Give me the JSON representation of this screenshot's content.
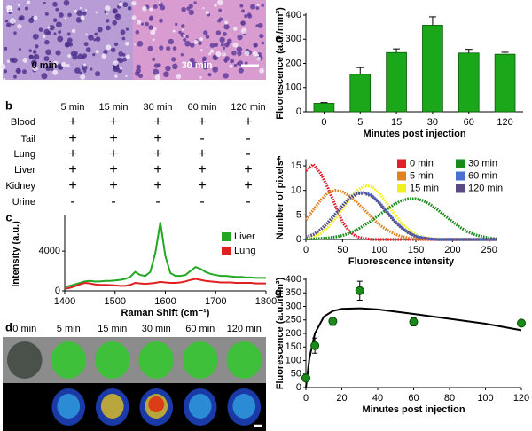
{
  "histology": {
    "label": "a",
    "captions": [
      "0 min",
      "30 min"
    ]
  },
  "table": {
    "label": "b",
    "columns": [
      "5 min",
      "15 min",
      "30 min",
      "60 min",
      "120 min"
    ],
    "rows": [
      [
        "Blood",
        "+",
        "+",
        "+",
        "+",
        "+"
      ],
      [
        "Tail",
        "+",
        "+",
        "+",
        "-",
        "-"
      ],
      [
        "Lung",
        "+",
        "+",
        "+",
        "+",
        "-"
      ],
      [
        "Liver",
        "+",
        "+",
        "+",
        "+",
        "+"
      ],
      [
        "Kidney",
        "+",
        "+",
        "+",
        "+",
        "+"
      ],
      [
        "Urine",
        "-",
        "-",
        "-",
        "-",
        "-"
      ]
    ]
  },
  "organs": {
    "label": "d",
    "captions": [
      "0 min",
      "5 min",
      "15 min",
      "30 min",
      "60 min",
      "120 min"
    ]
  },
  "chart_data": [
    {
      "type": "line",
      "label": "c",
      "xlabel": "Raman Shift (cm⁻¹)",
      "ylabel": "Intensity (a.u.)",
      "legend": "upper right",
      "x": [
        1400,
        1410,
        1420,
        1430,
        1440,
        1450,
        1460,
        1470,
        1480,
        1490,
        1500,
        1510,
        1520,
        1530,
        1540,
        1550,
        1560,
        1570,
        1580,
        1590,
        1600,
        1610,
        1620,
        1630,
        1640,
        1650,
        1660,
        1670,
        1680,
        1690,
        1700,
        1710,
        1720,
        1730,
        1740,
        1750,
        1760,
        1770,
        1780,
        1790,
        1800
      ],
      "xlim": [
        1400,
        1800
      ],
      "xticks": [
        1400,
        1500,
        1600,
        1700,
        1800
      ],
      "ylim": [
        0,
        7400
      ],
      "yticks": [
        0,
        4000
      ],
      "series": [
        {
          "name": "Liver",
          "color": "#22a822",
          "values": [
            400,
            500,
            650,
            800,
            950,
            1000,
            950,
            950,
            1000,
            1000,
            1050,
            1100,
            1200,
            1400,
            1900,
            1600,
            1500,
            1900,
            3800,
            6900,
            3500,
            1800,
            1500,
            1500,
            1600,
            2000,
            2400,
            2200,
            1900,
            1700,
            1600,
            1500,
            1500,
            1450,
            1400,
            1400,
            1350,
            1350,
            1300,
            1300,
            1300
          ]
        },
        {
          "name": "Lung",
          "color": "#e02020",
          "values": [
            200,
            300,
            450,
            650,
            800,
            750,
            650,
            600,
            600,
            580,
            550,
            500,
            500,
            600,
            800,
            750,
            700,
            750,
            800,
            900,
            850,
            800,
            800,
            850,
            950,
            1100,
            1200,
            1100,
            1000,
            950,
            900,
            850,
            850,
            850,
            800,
            800,
            800,
            800,
            750,
            750,
            750
          ]
        }
      ]
    },
    {
      "type": "bar",
      "label": "e",
      "xlabel": "Minutes post injection",
      "ylabel": "Fluorescence (a.u./mm²)",
      "color": "#1aa81a",
      "categories": [
        "0",
        "5",
        "15",
        "30",
        "60",
        "120"
      ],
      "values": [
        35,
        155,
        245,
        358,
        243,
        238
      ],
      "errors": [
        3,
        28,
        15,
        35,
        15,
        8
      ],
      "ylim": [
        0,
        400
      ],
      "yticks": [
        0,
        100,
        200,
        300,
        400
      ]
    },
    {
      "type": "line",
      "label": "f",
      "xlabel": "Fluorescence intensity",
      "ylabel": "Number of pixels",
      "line_style": "dotted",
      "legend": "upper right",
      "x": [
        0,
        10,
        20,
        30,
        40,
        50,
        60,
        70,
        80,
        90,
        100,
        110,
        120,
        130,
        140,
        150,
        160,
        170,
        180,
        190,
        200,
        210,
        220,
        230,
        240,
        250,
        260
      ],
      "xlim": [
        0,
        260
      ],
      "xticks": [
        0,
        50,
        100,
        150,
        200,
        250
      ],
      "ylim": [
        0,
        16
      ],
      "yticks": [
        0,
        5,
        10,
        15
      ],
      "series": [
        {
          "name": "0 min",
          "color": "#e0202a",
          "values": [
            14,
            15.3,
            13.5,
            10.5,
            7,
            3.5,
            1.5,
            0.5,
            0.2,
            0,
            0,
            0,
            0,
            0,
            0,
            0,
            0,
            0,
            0,
            0,
            0,
            0,
            0,
            0,
            0,
            0,
            0
          ]
        },
        {
          "name": "5 min",
          "color": "#e08020",
          "values": [
            4,
            6,
            8,
            9.5,
            10,
            9.7,
            8.8,
            7.5,
            6,
            4.5,
            3,
            2,
            1.2,
            0.6,
            0.3,
            0.1,
            0,
            0,
            0,
            0,
            0,
            0,
            0,
            0,
            0,
            0,
            0
          ]
        },
        {
          "name": "15 min",
          "color": "#f0f020",
          "values": [
            0.3,
            0.6,
            1.2,
            2.5,
            4.2,
            6.2,
            8.3,
            10,
            11,
            10.8,
            9.5,
            7.5,
            5.3,
            3.4,
            2,
            1,
            0.5,
            0.2,
            0.1,
            0,
            0,
            0,
            0,
            0,
            0,
            0,
            0
          ]
        },
        {
          "name": "30 min",
          "color": "#1a8a1a",
          "values": [
            0.1,
            0.1,
            0.2,
            0.3,
            0.5,
            0.8,
            1.3,
            2,
            2.9,
            3.9,
            5,
            6.1,
            7.1,
            7.9,
            8.3,
            8.3,
            7.9,
            7.1,
            6,
            4.8,
            3.6,
            2.5,
            1.6,
            1,
            0.6,
            0.3,
            0.1
          ]
        },
        {
          "name": "60 min",
          "color": "#4a70d0",
          "values": [
            0.5,
            1,
            2,
            3.5,
            5.2,
            7,
            8.6,
            9.5,
            9.6,
            9,
            7.6,
            5.8,
            4,
            2.5,
            1.4,
            0.7,
            0.3,
            0.1,
            0,
            0,
            0,
            0,
            0,
            0,
            0,
            0,
            0
          ]
        },
        {
          "name": "120 min",
          "color": "#5a4a80",
          "values": [
            0.5,
            1,
            2,
            3.4,
            5,
            6.8,
            8.4,
            9.3,
            9.4,
            8.8,
            7.4,
            5.6,
            3.8,
            2.4,
            1.3,
            0.6,
            0.3,
            0.1,
            0,
            0,
            0,
            0,
            0,
            0,
            0,
            0,
            0
          ]
        }
      ]
    },
    {
      "type": "scatter",
      "label": "g",
      "xlabel": "Minutes post injection",
      "ylabel": "Fluorescence (a.u./mm²)",
      "color": "#1a8a1a",
      "x": [
        0,
        5,
        15,
        30,
        60,
        120
      ],
      "values": [
        35,
        155,
        245,
        358,
        243,
        238
      ],
      "errors": [
        3,
        28,
        15,
        35,
        15,
        8
      ],
      "xlim": [
        0,
        120
      ],
      "xticks": [
        0,
        20,
        40,
        60,
        80,
        100,
        120
      ],
      "ylim": [
        0,
        400
      ],
      "yticks": [
        0,
        50,
        100,
        150,
        200,
        250,
        300,
        350,
        400
      ],
      "fit": {
        "color": "#000000",
        "x": [
          0,
          2,
          5,
          10,
          15,
          20,
          30,
          40,
          60,
          80,
          100,
          120
        ],
        "values": [
          0,
          110,
          200,
          262,
          283,
          291,
          293,
          289,
          272,
          254,
          236,
          212
        ]
      }
    }
  ]
}
